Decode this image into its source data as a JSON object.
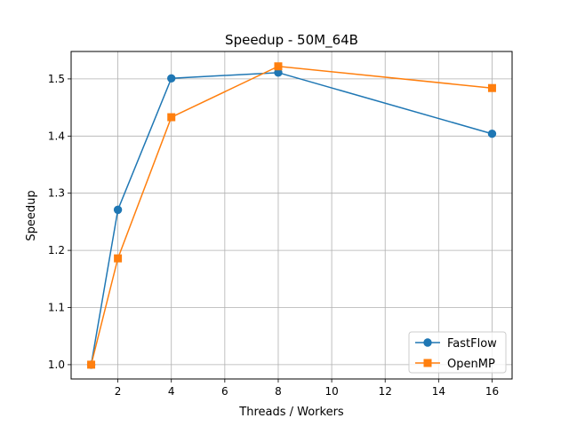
{
  "chart_data": {
    "type": "line",
    "title": "Speedup - 50M_64B",
    "xlabel": "Threads / Workers",
    "ylabel": "Speedup",
    "xlim": [
      0.25,
      16.75
    ],
    "ylim": [
      0.975,
      1.548
    ],
    "xticks": [
      2,
      4,
      6,
      8,
      10,
      12,
      14,
      16
    ],
    "yticks": [
      1.0,
      1.1,
      1.2,
      1.3,
      1.4,
      1.5
    ],
    "grid": true,
    "legend_position": "lower-right",
    "x": [
      1,
      2,
      4,
      8,
      16
    ],
    "series": [
      {
        "name": "FastFlow",
        "marker": "circle",
        "color": "#1f77b4",
        "values": [
          1.0,
          1.271,
          1.501,
          1.511,
          1.404
        ]
      },
      {
        "name": "OpenMP",
        "marker": "square",
        "color": "#ff7f0e",
        "values": [
          1.0,
          1.186,
          1.433,
          1.522,
          1.484
        ]
      }
    ]
  }
}
